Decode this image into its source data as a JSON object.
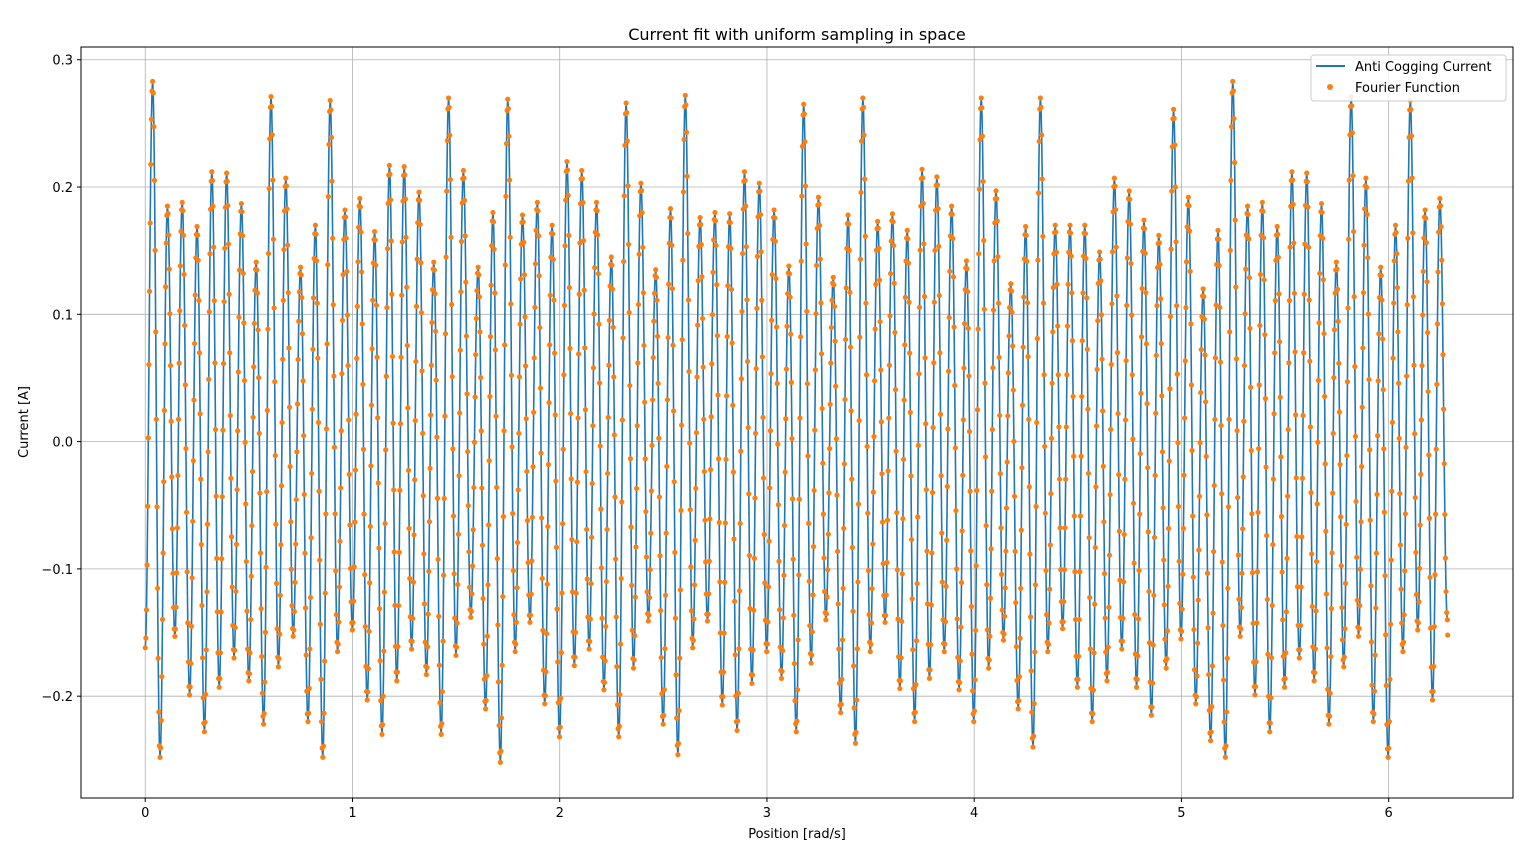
{
  "chart_data": {
    "type": "line",
    "title": "Current fit with uniform sampling in space",
    "xlabel": "Position [rad/s]",
    "ylabel": "Current [A]",
    "xlim": [
      -0.31,
      6.6
    ],
    "ylim": [
      -0.28,
      0.31
    ],
    "xticks": [
      0,
      1,
      2,
      3,
      4,
      5,
      6
    ],
    "xtick_labels": [
      "0",
      "1",
      "2",
      "3",
      "4",
      "5",
      "6"
    ],
    "yticks": [
      -0.2,
      -0.1,
      0.0,
      0.1,
      0.2,
      0.3
    ],
    "ytick_labels": [
      "−0.2",
      "−0.1",
      "0.0",
      "0.1",
      "0.2",
      "0.3"
    ],
    "grid": true,
    "legend_position": "top-right",
    "signal": {
      "x_start": 0,
      "x_end": 6.283,
      "oscillations": 88,
      "start_value": -0.162,
      "end_value": -0.14,
      "peaks": [
        0.283,
        0.185,
        0.188,
        0.169,
        0.212,
        0.211,
        0.187,
        0.141,
        0.271,
        0.207,
        0.137,
        0.17,
        0.268,
        0.182,
        0.191,
        0.165,
        0.217,
        0.216,
        0.196,
        0.141,
        0.27,
        0.213,
        0.137,
        0.18,
        0.269,
        0.178,
        0.188,
        0.17,
        0.22,
        0.213,
        0.188,
        0.145,
        0.266,
        0.203,
        0.135,
        0.183,
        0.272,
        0.176,
        0.18,
        0.179,
        0.212,
        0.203,
        0.182,
        0.138,
        0.265,
        0.192,
        0.129,
        0.178,
        0.27,
        0.173,
        0.179,
        0.166,
        0.214,
        0.208,
        0.185,
        0.142,
        0.27,
        0.197,
        0.124,
        0.169,
        0.27,
        0.17,
        0.17,
        0.17,
        0.149,
        0.207,
        0.197,
        0.174,
        0.162,
        0.261,
        0.192,
        0.12,
        0.166
      ],
      "troughs": [
        -0.248,
        -0.153,
        -0.199,
        -0.228,
        -0.193,
        -0.17,
        -0.188,
        -0.222,
        -0.177,
        -0.153,
        -0.22,
        -0.248,
        -0.165,
        -0.148,
        -0.203,
        -0.23,
        -0.188,
        -0.163,
        -0.183,
        -0.23,
        -0.168,
        -0.138,
        -0.21,
        -0.252,
        -0.165,
        -0.142,
        -0.206,
        -0.232,
        -0.176,
        -0.163,
        -0.195,
        -0.232,
        -0.178,
        -0.141,
        -0.222,
        -0.246,
        -0.162,
        -0.141,
        -0.207,
        -0.227,
        -0.19,
        -0.165,
        -0.186,
        -0.228,
        -0.174,
        -0.14,
        -0.213,
        -0.237,
        -0.165,
        -0.142,
        -0.194,
        -0.22,
        -0.186,
        -0.165,
        -0.195,
        -0.22,
        -0.178,
        -0.156,
        -0.21,
        -0.24,
        -0.165,
        -0.147,
        -0.193,
        -0.22,
        -0.188,
        -0.163,
        -0.193,
        -0.215,
        -0.178,
        -0.155,
        -0.206,
        -0.235
      ]
    },
    "series": [
      {
        "name": "Anti Cogging Current",
        "style": "line",
        "color": "#1f77b4"
      },
      {
        "name": "Fourier Function",
        "style": "markers",
        "color": "#ff7f0e"
      }
    ]
  }
}
